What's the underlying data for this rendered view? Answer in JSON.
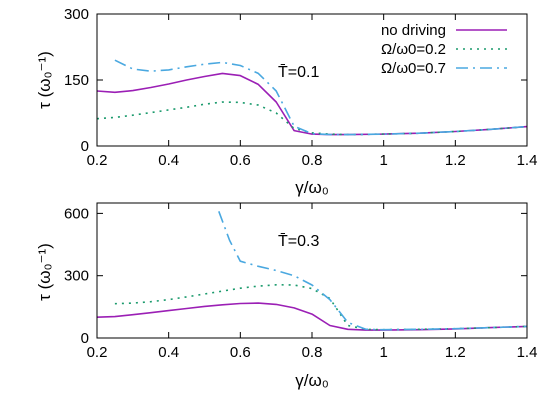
{
  "chart_data": [
    {
      "type": "line",
      "xlabel": "γ/ω₀",
      "ylabel": "τ  (ω₀⁻¹)",
      "annotation": "T̄=0.1",
      "xlim": [
        0.2,
        1.4
      ],
      "ylim": [
        0,
        300
      ],
      "xticks": [
        "0.2",
        "0.4",
        "0.6",
        "0.8",
        "1",
        "1.2",
        "1.4"
      ],
      "yticks": [
        "0",
        "150",
        "300"
      ],
      "legend_placement": "top-right",
      "series": [
        {
          "name": "no driving",
          "color": "#9b1fb5",
          "dash": "solid",
          "x": [
            0.2,
            0.25,
            0.3,
            0.35,
            0.4,
            0.45,
            0.5,
            0.55,
            0.6,
            0.65,
            0.7,
            0.75,
            0.8,
            0.85,
            0.9,
            1.0,
            1.1,
            1.2,
            1.3,
            1.4
          ],
          "y": [
            125,
            122,
            126,
            133,
            141,
            150,
            158,
            165,
            160,
            140,
            100,
            35,
            27,
            26,
            26,
            27,
            29,
            33,
            38,
            44
          ]
        },
        {
          "name": "Ω/ω0=0.2",
          "color": "#1a9a6c",
          "dash": "dotted",
          "x": [
            0.2,
            0.25,
            0.3,
            0.35,
            0.4,
            0.45,
            0.5,
            0.55,
            0.6,
            0.65,
            0.7,
            0.75,
            0.8,
            0.85,
            0.9,
            1.0,
            1.1,
            1.2,
            1.3,
            1.4
          ],
          "y": [
            62,
            65,
            70,
            76,
            82,
            88,
            95,
            100,
            99,
            93,
            75,
            40,
            30,
            27,
            26,
            27,
            29,
            33,
            38,
            44
          ]
        },
        {
          "name": "Ω/ω0=0.7",
          "color": "#4aa8e0",
          "dash": "dashdot",
          "x": [
            0.25,
            0.3,
            0.35,
            0.4,
            0.45,
            0.5,
            0.55,
            0.6,
            0.65,
            0.7,
            0.75,
            0.8,
            0.85,
            0.9,
            1.0,
            1.1,
            1.2,
            1.3,
            1.4
          ],
          "y": [
            195,
            175,
            170,
            173,
            180,
            186,
            190,
            183,
            165,
            125,
            45,
            28,
            26,
            26,
            27,
            29,
            33,
            38,
            44
          ]
        }
      ]
    },
    {
      "type": "line",
      "xlabel": "γ/ω₀",
      "ylabel": "τ  (ω₀⁻¹)",
      "annotation": "T̄=0.3",
      "xlim": [
        0.2,
        1.4
      ],
      "ylim": [
        0,
        650
      ],
      "xticks": [
        "0.2",
        "0.4",
        "0.6",
        "0.8",
        "1",
        "1.2",
        "1.4"
      ],
      "yticks": [
        "0",
        "300",
        "600"
      ],
      "series": [
        {
          "name": "no driving",
          "color": "#9b1fb5",
          "dash": "solid",
          "x": [
            0.2,
            0.25,
            0.3,
            0.35,
            0.4,
            0.45,
            0.5,
            0.55,
            0.6,
            0.65,
            0.7,
            0.75,
            0.8,
            0.85,
            0.9,
            0.95,
            1.0,
            1.1,
            1.2,
            1.3,
            1.4
          ],
          "y": [
            100,
            103,
            112,
            122,
            132,
            142,
            152,
            160,
            166,
            168,
            162,
            145,
            115,
            60,
            42,
            38,
            38,
            40,
            44,
            50,
            56
          ]
        },
        {
          "name": "Ω/ω0=0.2",
          "color": "#1a9a6c",
          "dash": "dotted",
          "x": [
            0.25,
            0.3,
            0.35,
            0.4,
            0.45,
            0.5,
            0.55,
            0.6,
            0.65,
            0.7,
            0.75,
            0.8,
            0.85,
            0.9,
            0.95,
            1.0,
            1.1,
            1.2,
            1.3,
            1.4
          ],
          "y": [
            165,
            168,
            175,
            185,
            198,
            212,
            226,
            240,
            250,
            256,
            255,
            238,
            190,
            60,
            42,
            40,
            42,
            45,
            50,
            56
          ]
        },
        {
          "name": "Ω/ω0=0.7",
          "color": "#4aa8e0",
          "dash": "dashdot",
          "x": [
            0.54,
            0.57,
            0.6,
            0.65,
            0.7,
            0.75,
            0.8,
            0.85,
            0.9,
            0.95,
            1.0,
            1.1,
            1.2,
            1.3,
            1.4
          ],
          "y": [
            610,
            470,
            370,
            345,
            325,
            300,
            255,
            185,
            75,
            42,
            40,
            42,
            45,
            50,
            56
          ]
        }
      ]
    }
  ]
}
